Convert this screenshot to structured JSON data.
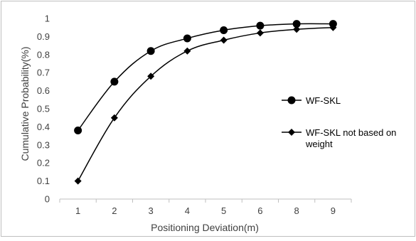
{
  "chart_data": {
    "type": "line",
    "categories": [
      "1",
      "2",
      "3",
      "4",
      "5",
      "6",
      "8",
      "9"
    ],
    "series": [
      {
        "name": "WF-SKL",
        "marker": "circle",
        "color": "#000000",
        "values": [
          0.38,
          0.65,
          0.82,
          0.89,
          0.935,
          0.96,
          0.97,
          0.97
        ]
      },
      {
        "name": "WF-SKL not based on weight",
        "marker": "diamond",
        "color": "#000000",
        "values": [
          0.1,
          0.45,
          0.68,
          0.82,
          0.88,
          0.92,
          0.94,
          0.95
        ]
      }
    ],
    "xlabel": "Positioning Deviation(m)",
    "ylabel": "Cumulative Probability(%)",
    "ylim": [
      0,
      1
    ],
    "yticks": [
      "0",
      "0.1",
      "0.2",
      "0.3",
      "0.4",
      "0.5",
      "0.6",
      "0.7",
      "0.8",
      "0.9",
      "1"
    ],
    "grid": false,
    "legend": "right"
  }
}
